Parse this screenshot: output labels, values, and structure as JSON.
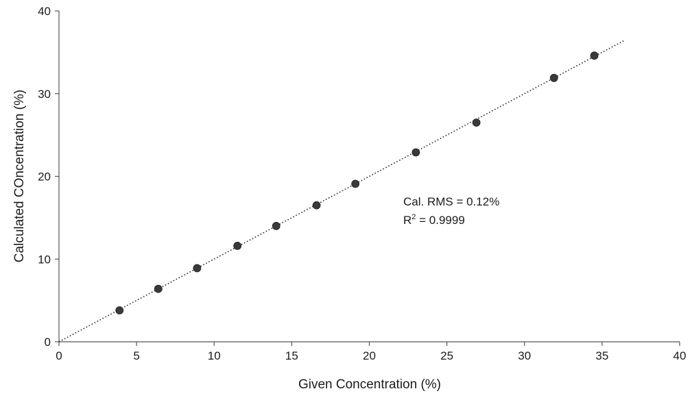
{
  "chart_data": {
    "type": "scatter",
    "xlabel": "Given Concentration (%)",
    "ylabel": "Calculated COncentration (%)",
    "xlim": [
      0,
      40
    ],
    "ylim": [
      0,
      40
    ],
    "x_ticks": [
      0,
      5,
      10,
      15,
      20,
      25,
      30,
      35,
      40
    ],
    "y_ticks": [
      0,
      10,
      20,
      30,
      40
    ],
    "grid": false,
    "points": [
      {
        "x": 3.9,
        "y": 3.8
      },
      {
        "x": 6.4,
        "y": 6.4
      },
      {
        "x": 8.9,
        "y": 8.9
      },
      {
        "x": 11.5,
        "y": 11.6
      },
      {
        "x": 14.0,
        "y": 14.0
      },
      {
        "x": 16.6,
        "y": 16.5
      },
      {
        "x": 19.1,
        "y": 19.1
      },
      {
        "x": 23.0,
        "y": 22.9
      },
      {
        "x": 26.9,
        "y": 26.5
      },
      {
        "x": 31.9,
        "y": 31.9
      },
      {
        "x": 34.5,
        "y": 34.6
      }
    ],
    "trendline": {
      "style": "dotted",
      "x_start": 0,
      "x_end": 36.5,
      "slope": 1.0,
      "intercept": 0
    },
    "annotations": {
      "rms": "Cal. RMS = 0.12%",
      "r2_prefix": "R",
      "r2_sup": "2",
      "r2_suffix": " = 0.9999"
    },
    "marker_color": "#3a3a3a"
  }
}
